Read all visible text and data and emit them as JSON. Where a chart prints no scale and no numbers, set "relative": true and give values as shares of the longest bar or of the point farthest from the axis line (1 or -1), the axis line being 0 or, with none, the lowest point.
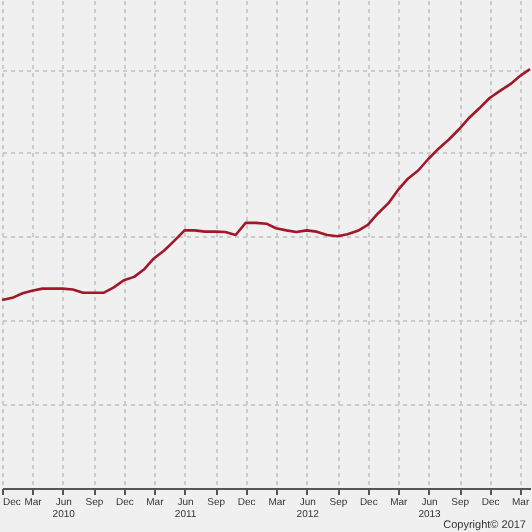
{
  "chart_data": {
    "type": "line",
    "relative": true,
    "grid": true,
    "marker": "none",
    "line_style": "solid",
    "x": [
      "2009-12",
      "2010-01",
      "2010-02",
      "2010-03",
      "2010-04",
      "2010-05",
      "2010-06",
      "2010-07",
      "2010-08",
      "2010-09",
      "2010-10",
      "2010-11",
      "2010-12",
      "2011-01",
      "2011-02",
      "2011-03",
      "2011-04",
      "2011-05",
      "2011-06",
      "2011-07",
      "2011-08",
      "2011-09",
      "2011-10",
      "2011-11",
      "2011-12",
      "2012-01",
      "2012-02",
      "2012-03",
      "2012-04",
      "2012-05",
      "2012-06",
      "2012-07",
      "2012-08",
      "2012-09",
      "2012-10",
      "2012-11",
      "2012-12",
      "2013-01",
      "2013-02",
      "2013-03",
      "2013-04",
      "2013-05",
      "2013-06",
      "2013-07",
      "2013-08",
      "2013-09",
      "2013-10",
      "2013-11",
      "2013-12",
      "2014-01",
      "2014-02",
      "2014-03",
      "2014-04"
    ],
    "series": [
      {
        "color": "#a0182a",
        "values": [
          0.449,
          0.454,
          0.465,
          0.471,
          0.476,
          0.476,
          0.476,
          0.474,
          0.466,
          0.466,
          0.466,
          0.479,
          0.496,
          0.504,
          0.523,
          0.548,
          0.567,
          0.59,
          0.615,
          0.615,
          0.612,
          0.612,
          0.611,
          0.604,
          0.633,
          0.633,
          0.631,
          0.62,
          0.615,
          0.611,
          0.615,
          0.612,
          0.604,
          0.601,
          0.606,
          0.614,
          0.628,
          0.656,
          0.68,
          0.711,
          0.739,
          0.758,
          0.786,
          0.81,
          0.832,
          0.857,
          0.884,
          0.907,
          0.931,
          0.948,
          0.964,
          0.983,
          1
        ]
      }
    ],
    "xlim": [
      "2009-12",
      "2014-04"
    ],
    "xticks": [
      {
        "value": "2009-12",
        "label": "Dec"
      },
      {
        "value": "2010-03",
        "label": "Mar"
      },
      {
        "value": "2010-06",
        "label": "Jun\n2010"
      },
      {
        "value": "2010-09",
        "label": "Sep"
      },
      {
        "value": "2010-12",
        "label": "Dec"
      },
      {
        "value": "2011-03",
        "label": "Mar"
      },
      {
        "value": "2011-06",
        "label": "Jun\n2011"
      },
      {
        "value": "2011-09",
        "label": "Sep"
      },
      {
        "value": "2011-12",
        "label": "Dec"
      },
      {
        "value": "2012-03",
        "label": "Mar"
      },
      {
        "value": "2012-06",
        "label": "Jun\n2012"
      },
      {
        "value": "2012-09",
        "label": "Sep"
      },
      {
        "value": "2012-12",
        "label": "Dec"
      },
      {
        "value": "2013-03",
        "label": "Mar"
      },
      {
        "value": "2013-06",
        "label": "Jun\n2013"
      },
      {
        "value": "2013-09",
        "label": "Sep"
      },
      {
        "value": "2013-12",
        "label": "Dec"
      },
      {
        "value": "2014-03",
        "label": "Mar"
      }
    ],
    "annotations": [
      "Copyright© 2017"
    ]
  }
}
